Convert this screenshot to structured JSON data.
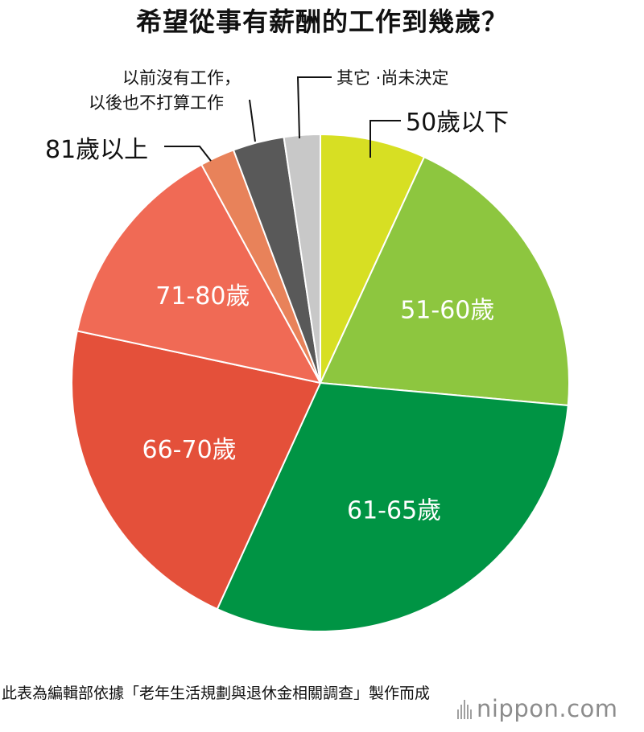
{
  "chart_data": {
    "type": "pie",
    "title": "希望從事有薪酬的工作到幾歲？",
    "start_angle_deg": 0,
    "direction": "clockwise",
    "slices": [
      {
        "label": "50歲以下",
        "value": 7.0,
        "color": "#d7df23",
        "label_position": "outside"
      },
      {
        "label": "51-60歲",
        "value": 20.0,
        "color": "#8dc63f",
        "label_position": "inside"
      },
      {
        "label": "61-65歲",
        "value": 31.0,
        "color": "#009444",
        "label_position": "inside"
      },
      {
        "label": "66-70歲",
        "value": 22.0,
        "color": "#e4503a",
        "label_position": "inside"
      },
      {
        "label": "71-80歲",
        "value": 14.0,
        "color": "#f06a55",
        "label_position": "inside"
      },
      {
        "label": "81歲以上",
        "value": 2.3,
        "color": "#e8825a",
        "label_position": "outside"
      },
      {
        "label": "以前沒有工作，以後也不打算工作",
        "value": 3.4,
        "color": "#595959",
        "label_position": "outside"
      },
      {
        "label": "其它 ·尚未決定",
        "value": 2.4,
        "color": "#c8c8c8",
        "label_position": "outside"
      }
    ]
  },
  "outside_labels": {
    "under50": "50歲以下",
    "over81": "81歲以上",
    "no_work_line1": "以前沒有工作，",
    "no_work_line2": "以後也不打算工作",
    "other": "其它 ·尚未決定"
  },
  "source_note": "此表為編輯部依據「老年生活規劃與退休金相關調查」製作而成",
  "brand": {
    "text": "nippon.com",
    "color": "#8c8c8c"
  }
}
